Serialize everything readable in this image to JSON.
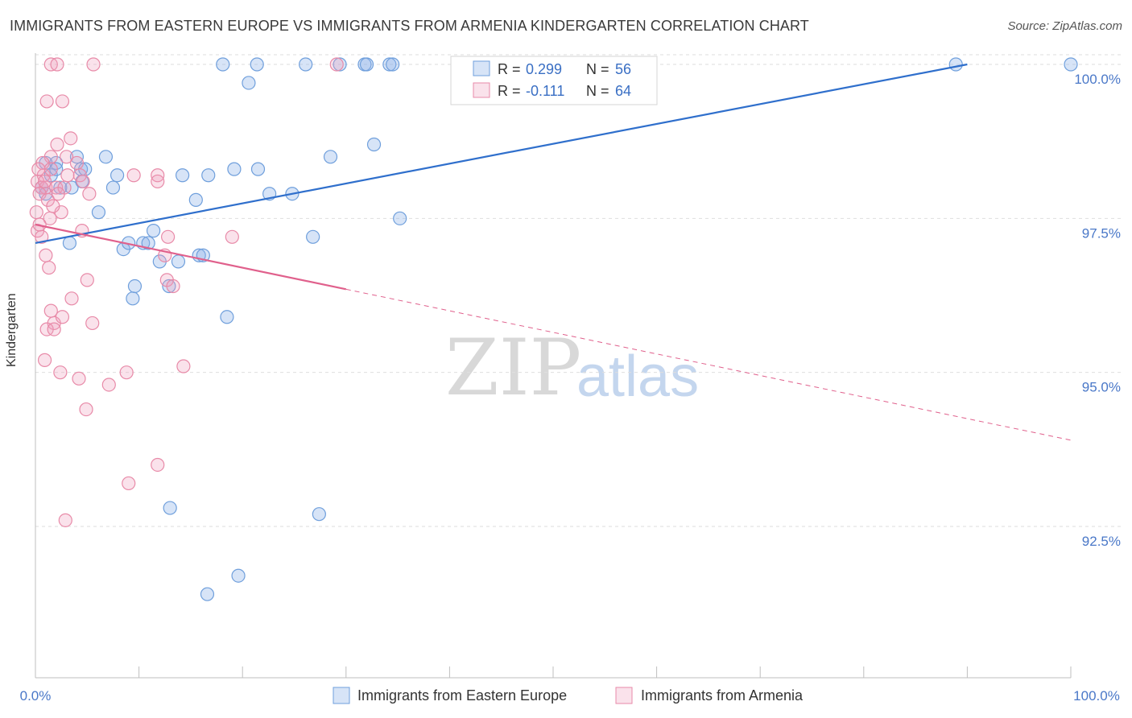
{
  "title": "IMMIGRANTS FROM EASTERN EUROPE VS IMMIGRANTS FROM ARMENIA KINDERGARTEN CORRELATION CHART",
  "source": "Source: ZipAtlas.com",
  "watermark": {
    "zip": "ZIP",
    "atlas": "atlas"
  },
  "colors": {
    "blue": "#6f9fdc",
    "blue_fill": "rgba(140,178,232,0.35)",
    "blue_line": "#2f6fcc",
    "pink": "#e88aa8",
    "pink_fill": "rgba(240,160,188,0.30)",
    "pink_line": "#e0608c",
    "tick_label": "#4a78c8",
    "grid": "#dedede"
  },
  "chart_data": {
    "type": "scatter",
    "xlabel": "",
    "ylabel": "Kindergarten",
    "xlim": [
      0,
      100
    ],
    "ylim": [
      90.5,
      100.4
    ],
    "x_tick_labels": [
      {
        "value": 0,
        "label": "0.0%"
      },
      {
        "value": 100,
        "label": "100.0%"
      }
    ],
    "y_ticks": [
      {
        "value": 100,
        "label": "100.0%"
      },
      {
        "value": 97.5,
        "label": "97.5%"
      },
      {
        "value": 95,
        "label": "95.0%"
      },
      {
        "value": 92.5,
        "label": "92.5%"
      }
    ],
    "x_minor_ticks": [
      0,
      10,
      20,
      30,
      40,
      50,
      60,
      70,
      80,
      90,
      100
    ],
    "legend": {
      "position": "top-center",
      "rows": [
        {
          "r_label": "R =",
          "r_value": "0.299",
          "n_label": "N =",
          "n_value": "56"
        },
        {
          "r_label": "R =",
          "r_value": "-0.111",
          "n_label": "N =",
          "n_value": "64"
        }
      ]
    },
    "bottom_legend": [
      "Immigrants from Eastern Europe",
      "Immigrants from Armenia"
    ],
    "series": [
      {
        "name": "Immigrants from Eastern Europe",
        "trend": {
          "x1": 0,
          "y1": 97.1,
          "x2": 90,
          "y2": 100.0
        },
        "points": [
          [
            18.1,
            100
          ],
          [
            21.4,
            100
          ],
          [
            26.1,
            100
          ],
          [
            29.4,
            100
          ],
          [
            31.8,
            100
          ],
          [
            32.0,
            100
          ],
          [
            34.2,
            100
          ],
          [
            34.5,
            100
          ],
          [
            88.9,
            100
          ],
          [
            100,
            100
          ],
          [
            20.6,
            99.7
          ],
          [
            32.7,
            98.7
          ],
          [
            4.0,
            98.5
          ],
          [
            6.8,
            98.5
          ],
          [
            2.0,
            98.4
          ],
          [
            28.5,
            98.5
          ],
          [
            4.4,
            98.3
          ],
          [
            1.0,
            98.4
          ],
          [
            1.5,
            98.2
          ],
          [
            4.8,
            98.3
          ],
          [
            7.9,
            98.2
          ],
          [
            14.2,
            98.2
          ],
          [
            16.7,
            98.2
          ],
          [
            19.2,
            98.3
          ],
          [
            21.5,
            98.3
          ],
          [
            2.4,
            98.0
          ],
          [
            3.5,
            98.0
          ],
          [
            4.5,
            98.1
          ],
          [
            7.5,
            98.0
          ],
          [
            0.6,
            98.0
          ],
          [
            1.0,
            97.9
          ],
          [
            15.5,
            97.8
          ],
          [
            22.6,
            97.9
          ],
          [
            24.8,
            97.9
          ],
          [
            6.1,
            97.6
          ],
          [
            35.2,
            97.5
          ],
          [
            11.4,
            97.3
          ],
          [
            26.8,
            97.2
          ],
          [
            3.3,
            97.1
          ],
          [
            8.5,
            97.0
          ],
          [
            9.0,
            97.1
          ],
          [
            10.4,
            97.1
          ],
          [
            10.9,
            97.1
          ],
          [
            12.0,
            96.8
          ],
          [
            13.8,
            96.8
          ],
          [
            15.8,
            96.9
          ],
          [
            16.2,
            96.9
          ],
          [
            12.9,
            96.4
          ],
          [
            9.6,
            96.4
          ],
          [
            9.4,
            96.2
          ],
          [
            18.5,
            95.9
          ],
          [
            13.0,
            92.8
          ],
          [
            27.4,
            92.7
          ],
          [
            19.6,
            91.7
          ],
          [
            16.6,
            91.4
          ],
          [
            2.0,
            98.3
          ]
        ]
      },
      {
        "name": "Immigrants from Armenia",
        "trend": {
          "x1": 0,
          "y1": 97.4,
          "x2": 30,
          "y2": 96.35,
          "dash_x2": 100,
          "dash_y2": 93.9
        },
        "points": [
          [
            1.5,
            100
          ],
          [
            2.1,
            100
          ],
          [
            5.6,
            100
          ],
          [
            29.1,
            100
          ],
          [
            2.6,
            99.4
          ],
          [
            1.1,
            99.4
          ],
          [
            2.1,
            98.7
          ],
          [
            3.4,
            98.8
          ],
          [
            1.5,
            98.5
          ],
          [
            3.0,
            98.5
          ],
          [
            0.7,
            98.4
          ],
          [
            4.0,
            98.4
          ],
          [
            0.8,
            98.2
          ],
          [
            1.5,
            98.3
          ],
          [
            4.3,
            98.2
          ],
          [
            9.5,
            98.2
          ],
          [
            11.8,
            98.2
          ],
          [
            11.8,
            98.1
          ],
          [
            0.2,
            98.1
          ],
          [
            0.6,
            98.0
          ],
          [
            1.0,
            98.0
          ],
          [
            2.0,
            98.0
          ],
          [
            5.2,
            97.9
          ],
          [
            0.4,
            97.9
          ],
          [
            1.2,
            97.8
          ],
          [
            2.5,
            97.6
          ],
          [
            1.4,
            97.5
          ],
          [
            0.2,
            97.3
          ],
          [
            0.6,
            97.2
          ],
          [
            4.5,
            97.3
          ],
          [
            12.8,
            97.2
          ],
          [
            19.0,
            97.2
          ],
          [
            1.3,
            96.7
          ],
          [
            12.5,
            96.9
          ],
          [
            5.0,
            96.5
          ],
          [
            12.7,
            96.5
          ],
          [
            13.3,
            96.4
          ],
          [
            3.5,
            96.2
          ],
          [
            1.5,
            96.0
          ],
          [
            5.5,
            95.8
          ],
          [
            1.8,
            95.8
          ],
          [
            2.6,
            95.9
          ],
          [
            1.1,
            95.7
          ],
          [
            1.8,
            95.7
          ],
          [
            0.9,
            95.2
          ],
          [
            14.3,
            95.1
          ],
          [
            2.4,
            95.0
          ],
          [
            4.2,
            94.9
          ],
          [
            8.8,
            95.0
          ],
          [
            7.1,
            94.8
          ],
          [
            4.9,
            94.4
          ],
          [
            11.8,
            93.5
          ],
          [
            9.0,
            93.2
          ],
          [
            2.9,
            92.6
          ],
          [
            0.3,
            98.3
          ],
          [
            0.9,
            98.1
          ],
          [
            2.8,
            98.0
          ],
          [
            1.7,
            97.7
          ],
          [
            0.1,
            97.6
          ],
          [
            0.4,
            97.4
          ],
          [
            3.1,
            98.2
          ],
          [
            4.6,
            98.1
          ],
          [
            2.2,
            97.9
          ],
          [
            1.0,
            96.9
          ]
        ]
      }
    ]
  }
}
